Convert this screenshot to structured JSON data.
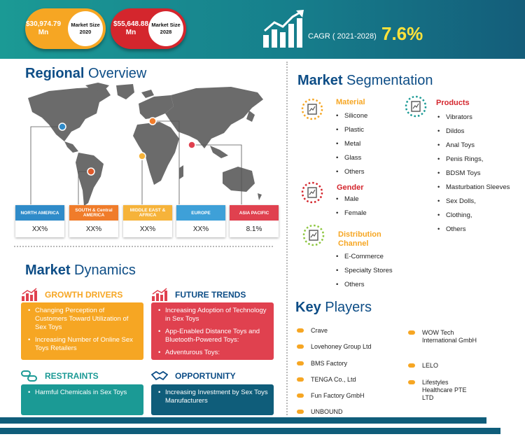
{
  "banner": {
    "market_size_2020": {
      "value": "$30,974.79 Mn",
      "label": "Market Size 2020"
    },
    "market_size_2028": {
      "value": "$55,648.88 Mn",
      "label": "Market Size 2028"
    },
    "cagr_label": "CAGR ( 2021-2028)",
    "cagr_value": "7.6%",
    "icon": "growth-chart-icon"
  },
  "regional": {
    "title_a": "Regional",
    "title_b": " Overview",
    "regions": [
      {
        "name": "NORTH AMERICA",
        "value": "XX%",
        "color": "#2f8bc9"
      },
      {
        "name": "SOUTH & Central AMERICA",
        "value": "XX%",
        "color": "#f07c2a"
      },
      {
        "name": "MIDDLE EAST & AFRICA",
        "value": "XX%",
        "color": "#f6b33a"
      },
      {
        "name": "EUROPE",
        "value": "XX%",
        "color": "#3ea0d8"
      },
      {
        "name": "ASIA PACIFIC",
        "value": "8.1%",
        "color": "#e0414f"
      }
    ]
  },
  "dynamics": {
    "title_a": "Market",
    "title_b": " Dynamics",
    "growth_drivers": {
      "title": "GROWTH DRIVERS",
      "color": "#f6a623",
      "items": [
        "Changing Perception of Customers Toward Utilization of Sex Toys",
        "Increasing Number of Online Sex Toys Retailers"
      ]
    },
    "future_trends": {
      "title": "FUTURE TRENDS",
      "color": "#e0414f",
      "items": [
        "Increasing Adoption of Technology in Sex Toys",
        "App-Enabled Distance Toys and Bluetooth-Powered Toys:",
        "Adventurous Toys:"
      ]
    },
    "restraints": {
      "title": "RESTRAINTS",
      "color": "#1b9a95",
      "items": [
        "Harmful Chemicals in Sex Toys"
      ]
    },
    "opportunity": {
      "title": "OPPORTUNITY",
      "color": "#0f5d7a",
      "items": [
        "Increasing Investment by Sex Toys Manufacturers"
      ]
    }
  },
  "segmentation": {
    "title_a": "Market",
    "title_b": " Segmentation",
    "material": {
      "title": "Material",
      "color": "#f6a623",
      "items": [
        "Silicone",
        "Plastic",
        "Metal",
        "Glass",
        "Others"
      ]
    },
    "products": {
      "title": "Products",
      "color": "#d4262d",
      "items": [
        "Vibrators",
        "Dildos",
        "Anal Toys",
        "Penis Rings,",
        "BDSM Toys",
        "Masturbation Sleeves",
        "Sex Dolls,",
        "Clothing,",
        "Others"
      ]
    },
    "gender": {
      "title": "Gender",
      "color": "#d4262d",
      "items": [
        "Male",
        "Female"
      ]
    },
    "distribution": {
      "title_1": "Distribution",
      "title_2": "Channel",
      "color": "#f6a623",
      "items": [
        "E-Commerce",
        "Specialty Stores",
        "Others"
      ]
    }
  },
  "key_players": {
    "title_a": "Key",
    "title_b": " Players",
    "left": [
      "Crave",
      "Lovehoney Group Ltd",
      "BMS Factory",
      "TENGA Co., Ltd",
      "Fun Factory GmbH",
      "UNBOUND"
    ],
    "right": [
      "WOW Tech International GmbH",
      "LELO",
      "Lifestyles Healthcare PTE LTD"
    ]
  }
}
